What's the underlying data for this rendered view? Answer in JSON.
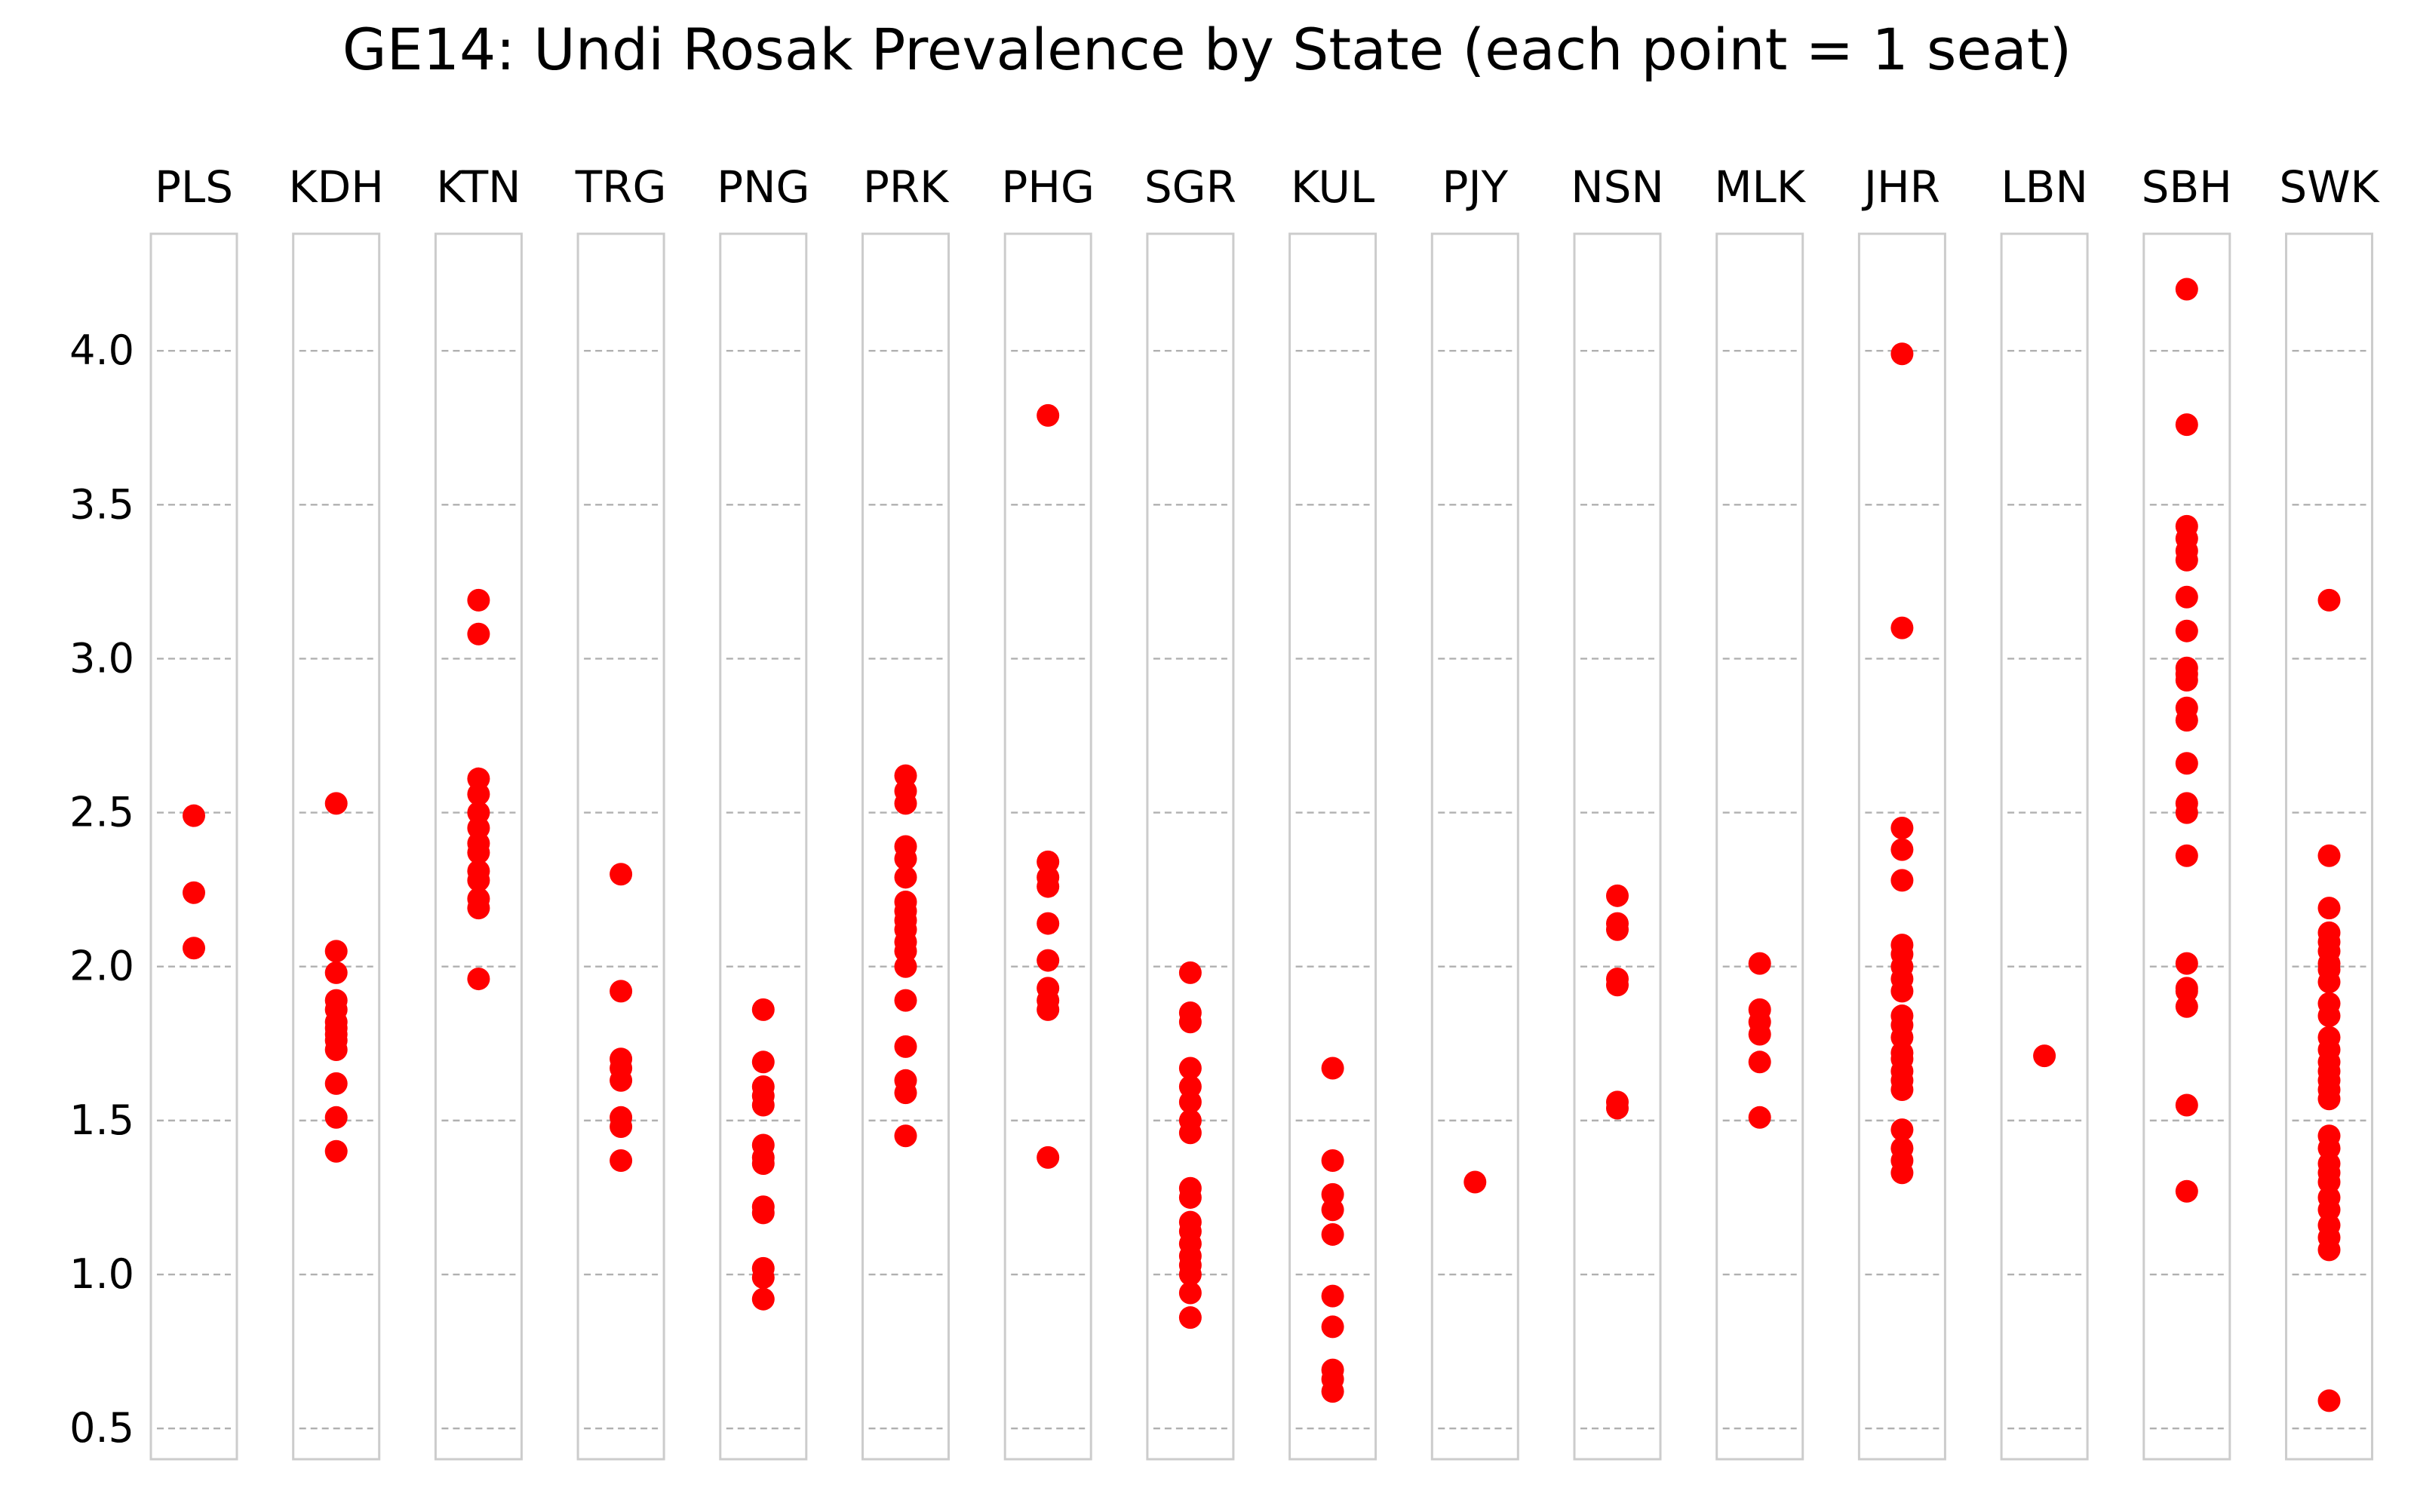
{
  "chart_data": {
    "type": "scatter",
    "title": "GE14: Undi Rosak Prevalence by State (each point = 1 seat)",
    "xlabel": "",
    "ylabel": "",
    "ylim": [
      0.4,
      4.38
    ],
    "y_ticks": [
      "0.5",
      "1.0",
      "1.5",
      "2.0",
      "2.5",
      "3.0",
      "3.5",
      "4.0"
    ],
    "grid": "horizontal dashed",
    "colors": {
      "point": "#ff0000",
      "panel_border": "#cccccc",
      "grid": "#b0b0b0"
    },
    "panels": [
      {
        "state": "PLS",
        "values": [
          2.49,
          2.24,
          2.06
        ]
      },
      {
        "state": "KDH",
        "values": [
          2.53,
          2.05,
          1.98,
          1.89,
          1.86,
          1.82,
          1.8,
          1.78,
          1.76,
          1.73,
          1.62,
          1.51,
          1.4
        ]
      },
      {
        "state": "KTN",
        "values": [
          3.19,
          3.08,
          2.61,
          2.56,
          2.5,
          2.45,
          2.4,
          2.37,
          2.31,
          2.28,
          2.22,
          2.19,
          1.96
        ]
      },
      {
        "state": "TRG",
        "values": [
          2.3,
          1.92,
          1.7,
          1.67,
          1.63,
          1.51,
          1.48,
          1.37
        ]
      },
      {
        "state": "PNG",
        "values": [
          1.86,
          1.69,
          1.61,
          1.58,
          1.55,
          1.42,
          1.38,
          1.36,
          1.22,
          1.2,
          1.02,
          0.99,
          0.92
        ]
      },
      {
        "state": "PRK",
        "values": [
          2.62,
          2.57,
          2.53,
          2.39,
          2.35,
          2.29,
          2.21,
          2.18,
          2.15,
          2.12,
          2.08,
          2.05,
          2.0,
          1.89,
          1.74,
          1.63,
          1.59,
          1.45
        ]
      },
      {
        "state": "PHG",
        "values": [
          3.79,
          2.34,
          2.29,
          2.26,
          2.14,
          2.02,
          1.93,
          1.89,
          1.86,
          1.38
        ]
      },
      {
        "state": "SGR",
        "values": [
          1.98,
          1.85,
          1.82,
          1.67,
          1.61,
          1.56,
          1.5,
          1.46,
          1.28,
          1.25,
          1.17,
          1.14,
          1.1,
          1.06,
          1.03,
          1.0,
          0.94,
          0.86
        ]
      },
      {
        "state": "KUL",
        "values": [
          1.67,
          1.37,
          1.26,
          1.21,
          1.13,
          0.93,
          0.83,
          0.69,
          0.66,
          0.62
        ]
      },
      {
        "state": "PJY",
        "values": [
          1.3
        ]
      },
      {
        "state": "NSN",
        "values": [
          2.23,
          2.14,
          2.12,
          1.96,
          1.94,
          1.56,
          1.54
        ]
      },
      {
        "state": "MLK",
        "values": [
          2.01,
          1.86,
          1.82,
          1.78,
          1.69,
          1.51
        ]
      },
      {
        "state": "JHR",
        "values": [
          3.99,
          3.1,
          2.45,
          2.38,
          2.28,
          2.07,
          2.04,
          2.0,
          1.96,
          1.92,
          1.84,
          1.81,
          1.77,
          1.72,
          1.7,
          1.66,
          1.63,
          1.6,
          1.47,
          1.41,
          1.37,
          1.33
        ]
      },
      {
        "state": "LBN",
        "values": [
          1.71
        ]
      },
      {
        "state": "SBH",
        "values": [
          4.2,
          3.76,
          3.43,
          3.39,
          3.35,
          3.32,
          3.2,
          3.09,
          2.97,
          2.95,
          2.93,
          2.84,
          2.8,
          2.66,
          2.53,
          2.5,
          2.36,
          2.01,
          1.93,
          1.92,
          1.87,
          1.55,
          1.27
        ]
      },
      {
        "state": "SWK",
        "values": [
          3.19,
          2.36,
          2.19,
          2.11,
          2.08,
          2.05,
          2.01,
          1.99,
          1.95,
          1.88,
          1.84,
          1.77,
          1.73,
          1.69,
          1.66,
          1.63,
          1.6,
          1.57,
          1.45,
          1.41,
          1.36,
          1.33,
          1.3,
          1.25,
          1.21,
          1.16,
          1.12,
          1.08,
          0.59
        ]
      }
    ]
  }
}
